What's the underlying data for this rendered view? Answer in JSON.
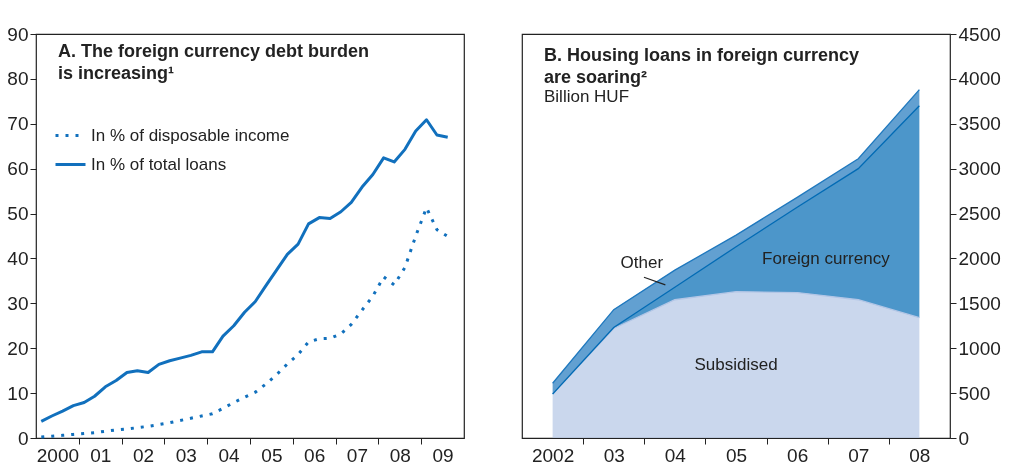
{
  "chart_data": [
    {
      "type": "line",
      "title": "A. The foreign currency debt burden is increasing¹",
      "x": [
        "2000-02-15",
        "2000-05-15",
        "2000-08-15",
        "2000-11-15",
        "2001-02-15",
        "2001-05-15",
        "2001-08-15",
        "2001-11-15",
        "2002-02-15",
        "2002-05-15",
        "2002-08-15",
        "2002-11-15",
        "2003-02-15",
        "2003-05-15",
        "2003-08-15",
        "2003-11-15",
        "2004-02-15",
        "2004-05-15",
        "2004-08-15",
        "2004-11-15",
        "2005-02-15",
        "2005-05-15",
        "2005-08-15",
        "2005-11-15",
        "2006-02-15",
        "2006-05-15",
        "2006-08-15",
        "2006-11-15",
        "2007-02-15",
        "2007-05-15",
        "2007-08-15",
        "2007-11-15",
        "2008-02-15",
        "2008-05-15",
        "2008-08-15",
        "2008-11-15",
        "2009-02-15",
        "2009-05-15",
        "2009-08-15"
      ],
      "series": [
        {
          "name": "In % of disposable income",
          "color": "#1170bd",
          "line_style": "dotted",
          "values": [
            0.2,
            0.4,
            0.6,
            0.8,
            1.0,
            1.2,
            1.5,
            1.8,
            2.0,
            2.3,
            2.6,
            3.0,
            3.4,
            3.9,
            4.4,
            4.9,
            5.4,
            6.6,
            7.9,
            9.1,
            10.2,
            12.0,
            14.1,
            16.5,
            18.6,
            21.4,
            22.1,
            22.2,
            23.2,
            25.3,
            28.5,
            31.6,
            35.9,
            34.1,
            38.0,
            45.0,
            51.3,
            46.4,
            44.9
          ]
        },
        {
          "name": "In % of total loans",
          "color": "#1170bd",
          "line_style": "solid",
          "values": [
            3.7,
            4.9,
            6.0,
            7.2,
            7.9,
            9.3,
            11.4,
            12.8,
            14.6,
            15.0,
            14.6,
            16.4,
            17.2,
            17.8,
            18.4,
            19.2,
            19.2,
            22.7,
            25.0,
            28.0,
            30.4,
            33.9,
            37.4,
            40.9,
            43.2,
            47.7,
            49.1,
            48.9,
            50.4,
            52.5,
            55.9,
            58.7,
            62.4,
            61.5,
            64.3,
            68.4,
            70.9,
            67.5,
            67.0
          ]
        }
      ],
      "xlim": [
        "2000",
        "2010"
      ],
      "xticks": [
        {
          "value": "2000-07-02",
          "label": "2000"
        },
        {
          "value": "2001",
          "label": null
        },
        {
          "value": "2001-07-02",
          "label": "01"
        },
        {
          "value": "2002",
          "label": null
        },
        {
          "value": "2002-07-02",
          "label": "02"
        },
        {
          "value": "2003",
          "label": null
        },
        {
          "value": "2003-07-02",
          "label": "03"
        },
        {
          "value": "2004",
          "label": null
        },
        {
          "value": "2004-07-02",
          "label": "04"
        },
        {
          "value": "2005",
          "label": null
        },
        {
          "value": "2005-07-02",
          "label": "05"
        },
        {
          "value": "2006",
          "label": null
        },
        {
          "value": "2006-07-02",
          "label": "06"
        },
        {
          "value": "2007",
          "label": null
        },
        {
          "value": "2007-07-02",
          "label": "07"
        },
        {
          "value": "2008",
          "label": null
        },
        {
          "value": "2008-07-02",
          "label": "08"
        },
        {
          "value": "2009",
          "label": null
        },
        {
          "value": "2009-07-02",
          "label": "09"
        }
      ],
      "ylim": [
        0,
        90
      ],
      "yticks": [
        0,
        10,
        20,
        30,
        40,
        50,
        60,
        70,
        80,
        90
      ],
      "legend": "top left"
    },
    {
      "type": "area",
      "stacked": true,
      "title": "B. Housing loans in foreign currency are soaring²",
      "subtitle": "Billion HUF",
      "x": [
        "2002",
        "2003",
        "2004",
        "2005",
        "2006",
        "2007",
        "2008"
      ],
      "series": [
        {
          "name": "Subsidised",
          "color": "#b3c6e6",
          "values": [
            490,
            1220,
            1540,
            1630,
            1620,
            1540,
            1340
          ]
        },
        {
          "name": "Foreign currency",
          "color": "#006ab4",
          "values": [
            0,
            10,
            140,
            500,
            950,
            1460,
            2360
          ]
        },
        {
          "name": "Other",
          "color": "#1f78be",
          "values": [
            120,
            200,
            190,
            130,
            110,
            110,
            180
          ]
        }
      ],
      "xlim": [
        "2001-07-02",
        "2008-07-02"
      ],
      "xticks": [
        {
          "value": "2002",
          "label": "2002"
        },
        {
          "value": "2002-07-02",
          "label": null
        },
        {
          "value": "2003",
          "label": "03"
        },
        {
          "value": "2003-07-02",
          "label": null
        },
        {
          "value": "2004",
          "label": "04"
        },
        {
          "value": "2004-07-02",
          "label": null
        },
        {
          "value": "2005",
          "label": "05"
        },
        {
          "value": "2005-07-02",
          "label": null
        },
        {
          "value": "2006",
          "label": "06"
        },
        {
          "value": "2006-07-02",
          "label": null
        },
        {
          "value": "2007",
          "label": "07"
        },
        {
          "value": "2007-07-02",
          "label": null
        },
        {
          "value": "2008",
          "label": "08"
        }
      ],
      "ylim": [
        0,
        4500
      ],
      "yticks": [
        0,
        500,
        1000,
        1500,
        2000,
        2500,
        3000,
        3500,
        4000,
        4500
      ]
    }
  ]
}
